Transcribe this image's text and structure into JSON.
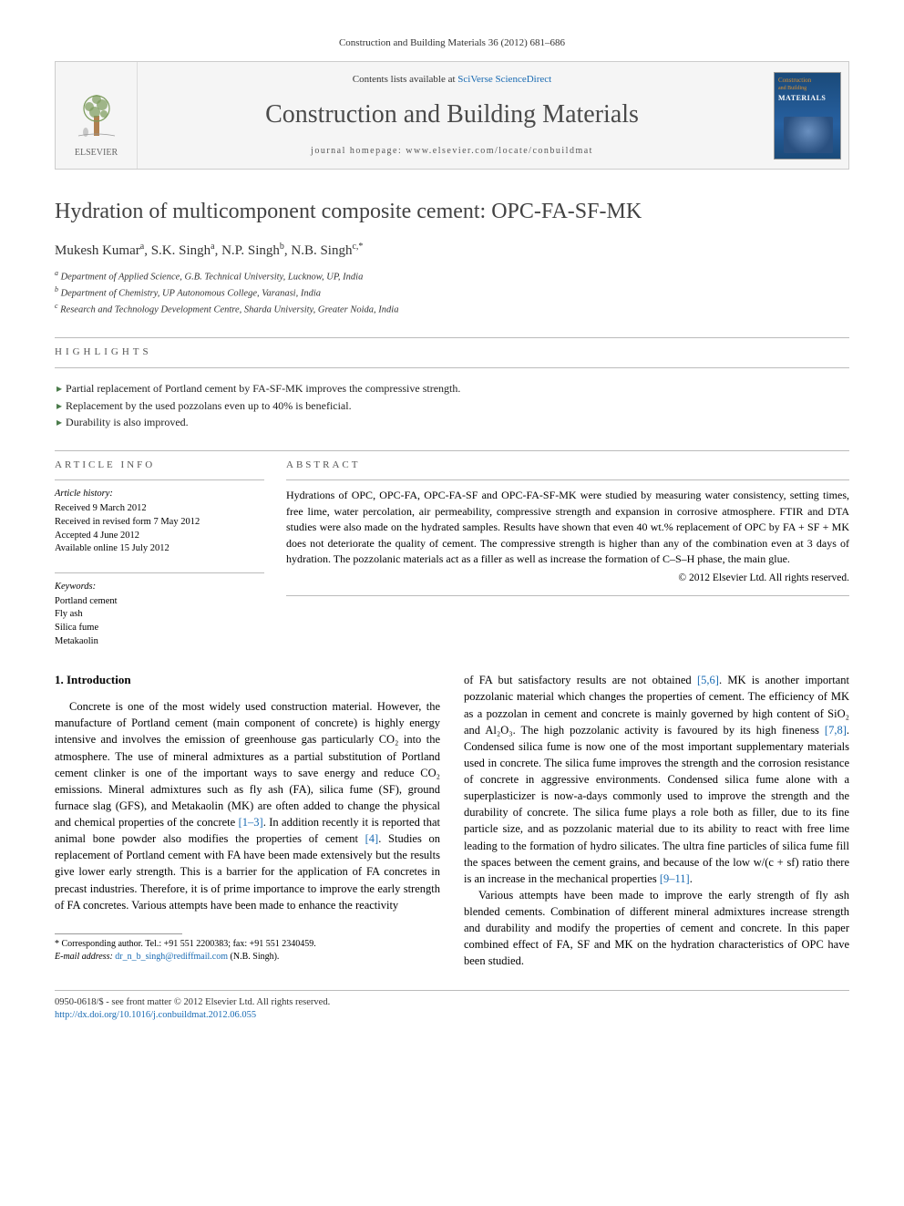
{
  "citation": "Construction and Building Materials 36 (2012) 681–686",
  "header": {
    "contents_prefix": "Contents lists available at ",
    "contents_link": "SciVerse ScienceDirect",
    "journal_title": "Construction and Building Materials",
    "homepage_prefix": "journal homepage: ",
    "homepage_url": "www.elsevier.com/locate/conbuildmat",
    "publisher_label": "ELSEVIER",
    "cover": {
      "line1": "Construction",
      "line2": "and Building",
      "line3": "MATERIALS"
    }
  },
  "article": {
    "title": "Hydration of multicomponent composite cement: OPC-FA-SF-MK",
    "authors_html": "Mukesh Kumar<sup>a</sup>, S.K. Singh<sup>a</sup>, N.P. Singh<sup>b</sup>, N.B. Singh<sup>c,*</sup>",
    "affiliations": [
      "a Department of Applied Science, G.B. Technical University, Lucknow, UP, India",
      "b Department of Chemistry, UP Autonomous College, Varanasi, India",
      "c Research and Technology Development Centre, Sharda University, Greater Noida, India"
    ]
  },
  "highlights": {
    "label": "HIGHLIGHTS",
    "items": [
      "Partial replacement of Portland cement by FA-SF-MK improves the compressive strength.",
      "Replacement by the used pozzolans even up to 40% is beneficial.",
      "Durability is also improved."
    ]
  },
  "info_left": {
    "label": "ARTICLE INFO",
    "history_label": "Article history:",
    "history": [
      "Received 9 March 2012",
      "Received in revised form 7 May 2012",
      "Accepted 4 June 2012",
      "Available online 15 July 2012"
    ],
    "keywords_label": "Keywords:",
    "keywords": [
      "Portland cement",
      "Fly ash",
      "Silica fume",
      "Metakaolin"
    ]
  },
  "abstract": {
    "label": "ABSTRACT",
    "text": "Hydrations of OPC, OPC-FA, OPC-FA-SF and OPC-FA-SF-MK were studied by measuring water consistency, setting times, free lime, water percolation, air permeability, compressive strength and expansion in corrosive atmosphere. FTIR and DTA studies were also made on the hydrated samples. Results have shown that even 40 wt.% replacement of OPC by FA + SF + MK does not deteriorate the quality of cement. The compressive strength is higher than any of the combination even at 3 days of hydration. The pozzolanic materials act as a filler as well as increase the formation of C–S–H phase, the main glue.",
    "copyright": "© 2012 Elsevier Ltd. All rights reserved."
  },
  "body": {
    "heading": "1. Introduction",
    "col1_p1": "Concrete is one of the most widely used construction material. However, the manufacture of Portland cement (main component of concrete) is highly energy intensive and involves the emission of greenhouse gas particularly CO₂ into the atmosphere. The use of mineral admixtures as a partial substitution of Portland cement clinker is one of the important ways to save energy and reduce CO₂ emissions. Mineral admixtures such as fly ash (FA), silica fume (SF), ground furnace slag (GFS), and Metakaolin (MK) are often added to change the physical and chemical properties of the concrete ",
    "col1_ref1": "[1–3]",
    "col1_p1b": ". In addition recently it is reported that animal bone powder also modifies the properties of cement ",
    "col1_ref2": "[4]",
    "col1_p1c": ". Studies on replacement of Portland cement with FA have been made extensively but the results give lower early strength. This is a barrier for the application of FA concretes in precast industries. Therefore, it is of prime importance to improve the early strength of FA concretes. Various attempts have been made to enhance the reactivity",
    "col2_p1a": "of FA but satisfactory results are not obtained ",
    "col2_ref1": "[5,6]",
    "col2_p1b": ". MK is another important pozzolanic material which changes the properties of cement. The efficiency of MK as a pozzolan in cement and concrete is mainly governed by high content of SiO₂ and Al₂O₃. The high pozzolanic activity is favoured by its high fineness ",
    "col2_ref2": "[7,8]",
    "col2_p1c": ". Condensed silica fume is now one of the most important supplementary materials used in concrete. The silica fume improves the strength and the corrosion resistance of concrete in aggressive environments. Condensed silica fume alone with a superplasticizer is now-a-days commonly used to improve the strength and the durability of concrete. The silica fume plays a role both as filler, due to its fine particle size, and as pozzolanic material due to its ability to react with free lime leading to the formation of hydro silicates. The ultra fine particles of silica fume fill the spaces between the cement grains, and because of the low w/(c + sf) ratio there is an increase in the mechanical properties ",
    "col2_ref3": "[9–11]",
    "col2_p1d": ".",
    "col2_p2": "Various attempts have been made to improve the early strength of fly ash blended cements. Combination of different mineral admixtures increase strength and durability and modify the properties of cement and concrete. In this paper combined effect of FA, SF and MK on the hydration characteristics of OPC have been studied."
  },
  "footnote": {
    "corr": "* Corresponding author. Tel.: +91 551 2200383; fax: +91 551 2340459.",
    "email_label": "E-mail address: ",
    "email": "dr_n_b_singh@rediffmail.com",
    "email_after": " (N.B. Singh)."
  },
  "bottom": {
    "left1": "0950-0618/$ - see front matter © 2012 Elsevier Ltd. All rights reserved.",
    "left2_label": "",
    "doi": "http://dx.doi.org/10.1016/j.conbuildmat.2012.06.055"
  },
  "colors": {
    "link": "#1a6bb3",
    "text": "#000000",
    "muted": "#555555",
    "border": "#bbbbbb",
    "cover_bg": "#1a4a7a",
    "cover_accent": "#d89030"
  }
}
